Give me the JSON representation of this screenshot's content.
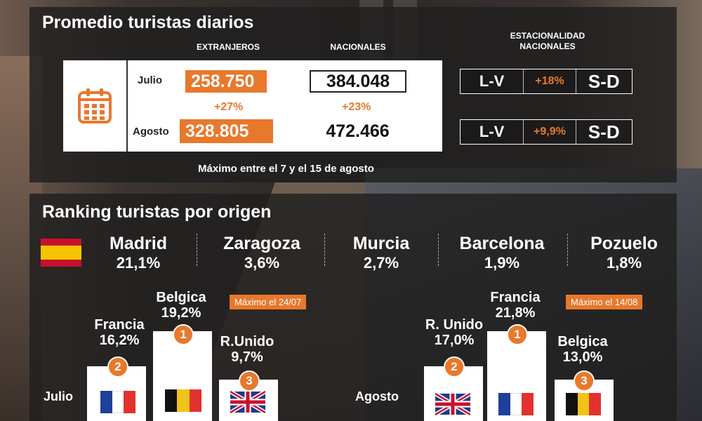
{
  "top": {
    "title": "Promedio turistas diarios",
    "col_extranjeros": "EXTRANJEROS",
    "col_nacionales": "NACIONALES",
    "col_estacionalidad_line1": "ESTACIONALIDAD",
    "col_estacionalidad_line2": "NACIONALES",
    "icon": "calendar-icon",
    "rows": [
      {
        "month": "Julio",
        "extranjeros": "258.750",
        "nacionales": "384.048",
        "lv": "L-V",
        "season_pct": "+18%",
        "sd": "S-D"
      },
      {
        "month": "Agosto",
        "extranjeros": "328.805",
        "nacionales": "472.466",
        "lv": "L-V",
        "season_pct": "+9,9%",
        "sd": "S-D"
      }
    ],
    "growth_extranjeros": "+27%",
    "growth_nacionales": "+23%",
    "note": "Máximo entre el 7 y el 15 de agosto"
  },
  "bottom": {
    "title": "Ranking turistas por origen",
    "national_flag": "spain-flag",
    "cities": [
      {
        "name": "Madrid",
        "pct": "21,1%"
      },
      {
        "name": "Zaragoza",
        "pct": "3,6%"
      },
      {
        "name": "Murcia",
        "pct": "2,7%"
      },
      {
        "name": "Barcelona",
        "pct": "1,9%"
      },
      {
        "name": "Pozuelo",
        "pct": "1,8%"
      }
    ],
    "julio": {
      "label": "Julio",
      "badge": "Máximo el 24/07",
      "first": {
        "rank": "1",
        "country": "Belgica",
        "pct": "19,2%",
        "flag": "belgium-flag"
      },
      "second": {
        "rank": "2",
        "country": "Francia",
        "pct": "16,2%",
        "flag": "france-flag"
      },
      "third": {
        "rank": "3",
        "country": "R.Unido",
        "pct": "9,7%",
        "flag": "uk-flag"
      }
    },
    "agosto": {
      "label": "Agosto",
      "badge": "Máximo el 14/08",
      "first": {
        "rank": "1",
        "country": "Francia",
        "pct": "21,8%",
        "flag": "france-flag"
      },
      "second": {
        "rank": "2",
        "country": "R. Unido",
        "pct": "17,0%",
        "flag": "uk-flag"
      },
      "third": {
        "rank": "3",
        "country": "Belgica",
        "pct": "13,0%",
        "flag": "belgium-flag"
      }
    },
    "colors": {
      "accent": "#e8782c",
      "france": [
        "#1f3f9a",
        "#ffffff",
        "#e2322f"
      ],
      "belgium": [
        "#111111",
        "#f2c218",
        "#e2322f"
      ],
      "spain": [
        "#c8102e",
        "#f5c400",
        "#c8102e"
      ]
    }
  }
}
